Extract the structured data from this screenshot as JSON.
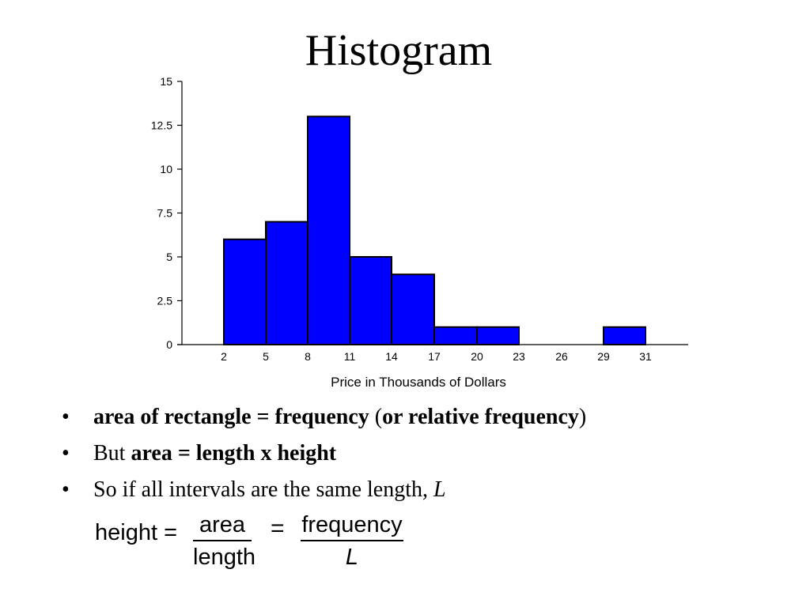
{
  "slide": {
    "title": "Histogram"
  },
  "chart_data": {
    "type": "bar",
    "xlabel": "Price in Thousands of Dollars",
    "ylabel": "",
    "ylim": [
      0,
      15
    ],
    "yticks": [
      "0",
      "2.5",
      "5",
      "7.5",
      "10",
      "12.5",
      "15"
    ],
    "ytick_values": [
      0,
      2.5,
      5,
      7.5,
      10,
      12.5,
      15
    ],
    "xticks": [
      "2",
      "5",
      "8",
      "11",
      "14",
      "17",
      "20",
      "23",
      "26",
      "29",
      "31"
    ],
    "bins": [
      {
        "start": 2,
        "end": 5,
        "value": 6
      },
      {
        "start": 5,
        "end": 8,
        "value": 7
      },
      {
        "start": 8,
        "end": 11,
        "value": 13
      },
      {
        "start": 11,
        "end": 14,
        "value": 5
      },
      {
        "start": 14,
        "end": 17,
        "value": 4
      },
      {
        "start": 17,
        "end": 20,
        "value": 1
      },
      {
        "start": 20,
        "end": 23,
        "value": 1
      },
      {
        "start": 23,
        "end": 26,
        "value": 0
      },
      {
        "start": 26,
        "end": 29,
        "value": 0
      },
      {
        "start": 29,
        "end": 31,
        "value": 1
      }
    ],
    "bar_color": "#0000ff",
    "grid": false
  },
  "bullets": {
    "b1": {
      "bold_part": "area of rectangle = frequency",
      "normal_part": " (",
      "bold_part2": "or relative frequency",
      "end": ")"
    },
    "b2": {
      "normal_part": "But ",
      "bold_part": "area = length x height"
    },
    "b3": {
      "normal_part": "So if all intervals are the same length, ",
      "italic_part": "L"
    }
  },
  "formula": {
    "lhs": "height =",
    "frac1_num": "area",
    "frac1_den": "length",
    "equals": "=",
    "frac2_num": "frequency",
    "frac2_den": "L"
  }
}
